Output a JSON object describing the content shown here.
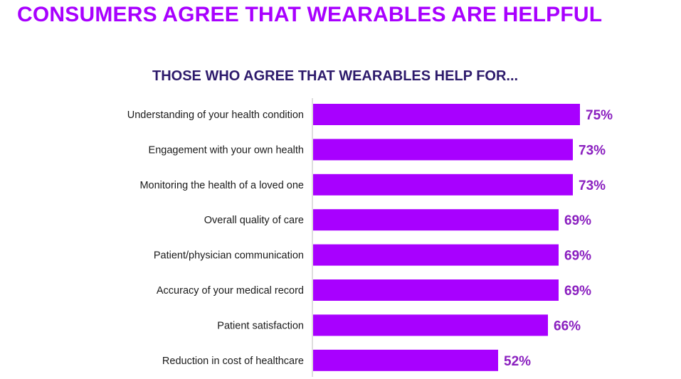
{
  "page": {
    "title": "CONSUMERS AGREE THAT WEARABLES ARE HELPFUL"
  },
  "colors": {
    "title": "#a800ff",
    "chart_title": "#2d1a6b",
    "bar": "#a800ff",
    "value_label": "#8a1fbf",
    "axis": "#bbbbbb"
  },
  "chart_data": {
    "type": "bar",
    "orientation": "horizontal",
    "title": "THOSE WHO AGREE THAT WEARABLES HELP FOR...",
    "categories": [
      "Understanding of your health condition",
      "Engagement with your own health",
      "Monitoring the health of a loved one",
      "Overall quality of care",
      "Patient/physician communication",
      "Accuracy of your medical record",
      "Patient satisfaction",
      "Reduction in cost of healthcare"
    ],
    "values": [
      75,
      73,
      73,
      69,
      69,
      69,
      66,
      52
    ],
    "value_labels": [
      "75%",
      "73%",
      "73%",
      "69%",
      "69%",
      "69%",
      "66%",
      "52%"
    ],
    "unit": "%",
    "xlim": [
      0,
      100
    ],
    "grid": false,
    "legend": "none"
  }
}
